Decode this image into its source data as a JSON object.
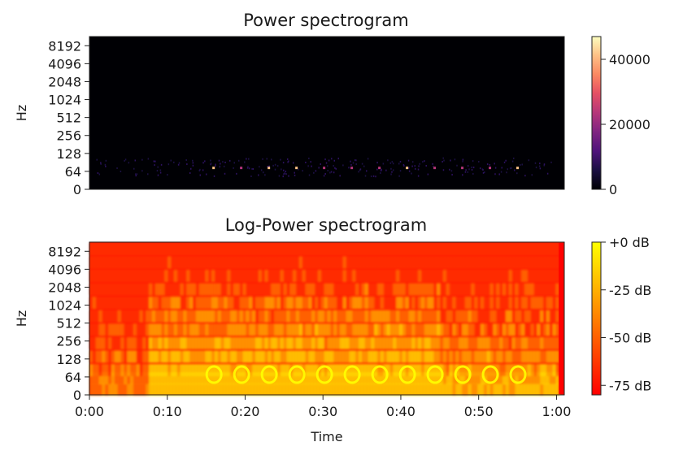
{
  "chart_data": [
    {
      "type": "heatmap",
      "title": "Power spectrogram",
      "ylabel": "Hz",
      "xlabel": "",
      "y_scale": "symlog",
      "yticks": [
        "0",
        "64",
        "128",
        "256",
        "512",
        "1024",
        "2048",
        "4096",
        "8192"
      ],
      "ytick_values": [
        0,
        64,
        128,
        256,
        512,
        1024,
        2048,
        4096,
        8192
      ],
      "xlim_seconds": [
        0,
        61
      ],
      "x_ticks_visible": false,
      "colormap": "magma",
      "colorbar": {
        "range": [
          0,
          47000
        ],
        "ticks": [
          "0",
          "20000",
          "40000"
        ],
        "tick_values": [
          0,
          20000,
          40000
        ]
      },
      "colors": {
        "background": "#000004",
        "peak": "#fcfdbf",
        "mid": "#b73779",
        "low": "#3b0f70"
      }
    },
    {
      "type": "heatmap",
      "title": "Log-Power spectrogram",
      "ylabel": "Hz",
      "xlabel": "Time",
      "y_scale": "symlog",
      "yticks": [
        "0",
        "64",
        "128",
        "256",
        "512",
        "1024",
        "2048",
        "4096",
        "8192"
      ],
      "ytick_values": [
        0,
        64,
        128,
        256,
        512,
        1024,
        2048,
        4096,
        8192
      ],
      "xticks": [
        "0:00",
        "0:10",
        "0:20",
        "0:30",
        "0:40",
        "0:50",
        "1:00"
      ],
      "xtick_values": [
        0,
        10,
        20,
        30,
        40,
        50,
        60
      ],
      "xlim_seconds": [
        0,
        61
      ],
      "colormap": "autumn",
      "colorbar": {
        "range": [
          -80,
          0
        ],
        "ticks": [
          "+0 dB",
          "-25 dB",
          "-50 dB",
          "-75 dB"
        ],
        "tick_values": [
          0,
          -25,
          -50,
          -75
        ]
      },
      "colors": {
        "low": "#ff0000",
        "mid": "#ff8000",
        "high": "#ffff00"
      }
    }
  ]
}
